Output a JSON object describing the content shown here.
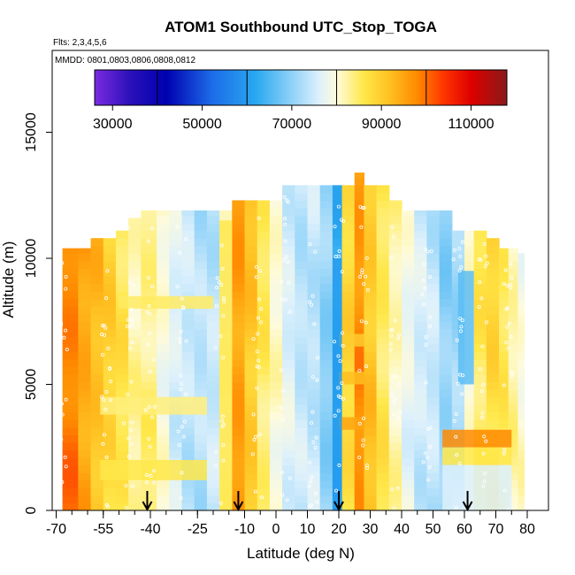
{
  "chart_data": {
    "type": "heatmap",
    "title": "ATOM1 Southbound UTC_Stop_TOGA",
    "subtitle_flights": "Flts: 2,3,4,5,6",
    "subtitle_dates": "MMDD: 0801,0803,0806,0808,0812",
    "xlabel": "Latitude (deg N)",
    "ylabel": "Altitude (m)",
    "xlim": [
      -70,
      82
    ],
    "ylim": [
      0,
      18000
    ],
    "x_ticks": [
      -70,
      -55,
      -40,
      -25,
      -10,
      0,
      10,
      20,
      30,
      40,
      50,
      60,
      70,
      80
    ],
    "x_tick_labels": [
      "-70",
      "-55",
      "-40",
      "-25",
      "-10",
      "0",
      "10",
      "20",
      "30",
      "40",
      "50",
      "60",
      "70",
      "80"
    ],
    "x_minor_step": 5,
    "y_ticks": [
      0,
      5000,
      10000,
      15000
    ],
    "y_tick_labels": [
      "0",
      "5000",
      "10000",
      "15000"
    ],
    "colorbar": {
      "min": 26000,
      "max": 118000,
      "ticks": [
        30000,
        50000,
        70000,
        90000,
        110000
      ],
      "tick_labels": [
        "30000",
        "50000",
        "70000",
        "90000",
        "110000"
      ],
      "dividers": [
        40000,
        60000,
        80000,
        100000
      ],
      "stops": [
        {
          "value": 26000,
          "color": "#7a2be0"
        },
        {
          "value": 34000,
          "color": "#2a10b8"
        },
        {
          "value": 42000,
          "color": "#0000b0"
        },
        {
          "value": 52000,
          "color": "#1c6ae8"
        },
        {
          "value": 62000,
          "color": "#29a8f0"
        },
        {
          "value": 70000,
          "color": "#8fd2f8"
        },
        {
          "value": 76000,
          "color": "#dcf0fc"
        },
        {
          "value": 80000,
          "color": "#fefbdc"
        },
        {
          "value": 86000,
          "color": "#ffe84a"
        },
        {
          "value": 92000,
          "color": "#ffbf20"
        },
        {
          "value": 98000,
          "color": "#ff8a00"
        },
        {
          "value": 104000,
          "color": "#ff3300"
        },
        {
          "value": 110000,
          "color": "#dd0000"
        },
        {
          "value": 118000,
          "color": "#8a1a1a"
        }
      ]
    },
    "columns": [
      {
        "x0": -68,
        "x1": -63,
        "top": 10400,
        "value": 99000
      },
      {
        "x0": -63,
        "x1": -59,
        "top": 10400,
        "value": 95000
      },
      {
        "x0": -59,
        "x1": -55,
        "top": 10800,
        "value": 92000
      },
      {
        "x0": -55,
        "x1": -51,
        "top": 10800,
        "value": 89000
      },
      {
        "x0": -51,
        "x1": -47,
        "top": 11100,
        "value": 86000
      },
      {
        "x0": -47,
        "x1": -43,
        "top": 11600,
        "value": 82000
      },
      {
        "x0": -43,
        "x1": -38,
        "top": 11900,
        "value": 84000
      },
      {
        "x0": -38,
        "x1": -34,
        "top": 11900,
        "value": 80000
      },
      {
        "x0": -34,
        "x1": -30,
        "top": 11900,
        "value": 76000
      },
      {
        "x0": -30,
        "x1": -26,
        "top": 11900,
        "value": 74000
      },
      {
        "x0": -26,
        "x1": -22,
        "top": 11900,
        "value": 73000
      },
      {
        "x0": -22,
        "x1": -18,
        "top": 11900,
        "value": 74000
      },
      {
        "x0": -18,
        "x1": -14,
        "top": 11900,
        "value": 80000
      },
      {
        "x0": -14,
        "x1": -10,
        "top": 12300,
        "value": 96000
      },
      {
        "x0": -10,
        "x1": -6,
        "top": 12300,
        "value": 91000
      },
      {
        "x0": -6,
        "x1": -2,
        "top": 12300,
        "value": 85000
      },
      {
        "x0": -2,
        "x1": 2,
        "top": 12300,
        "value": 80000
      },
      {
        "x0": 2,
        "x1": 6,
        "top": 12900,
        "value": 76000
      },
      {
        "x0": 6,
        "x1": 10,
        "top": 12900,
        "value": 74000
      },
      {
        "x0": 10,
        "x1": 14,
        "top": 12900,
        "value": 74000
      },
      {
        "x0": 14,
        "x1": 18,
        "top": 12900,
        "value": 70000
      },
      {
        "x0": 18,
        "x1": 21,
        "top": 12900,
        "value": 62000
      },
      {
        "x0": 21,
        "x1": 25,
        "top": 12900,
        "value": 88000
      },
      {
        "x0": 25,
        "x1": 28,
        "top": 13400,
        "value": 97000
      },
      {
        "x0": 28,
        "x1": 32,
        "top": 12900,
        "value": 91000
      },
      {
        "x0": 32,
        "x1": 36,
        "top": 12900,
        "value": 86000
      },
      {
        "x0": 36,
        "x1": 40,
        "top": 12300,
        "value": 82000
      },
      {
        "x0": 40,
        "x1": 44,
        "top": 11900,
        "value": 78000
      },
      {
        "x0": 44,
        "x1": 48,
        "top": 11900,
        "value": 75000
      },
      {
        "x0": 48,
        "x1": 52,
        "top": 11900,
        "value": 74000
      },
      {
        "x0": 52,
        "x1": 56,
        "top": 11900,
        "value": 70000
      },
      {
        "x0": 56,
        "x1": 60,
        "top": 11100,
        "value": 72000
      },
      {
        "x0": 60,
        "x1": 63,
        "top": 11100,
        "value": 80000
      },
      {
        "x0": 63,
        "x1": 67,
        "top": 11100,
        "value": 86000
      },
      {
        "x0": 67,
        "x1": 71,
        "top": 10800,
        "value": 88000
      },
      {
        "x0": 71,
        "x1": 74,
        "top": 10400,
        "value": 85000
      },
      {
        "x0": 74,
        "x1": 77,
        "top": 10400,
        "value": 82000
      },
      {
        "x0": 77,
        "x1": 79,
        "top": 10200,
        "value": 80000
      }
    ],
    "bands": [
      {
        "x0": -56,
        "x1": -22,
        "y0": 1200,
        "y1": 2000,
        "value": 86000
      },
      {
        "x0": -56,
        "x1": -22,
        "y0": 3800,
        "y1": 4500,
        "value": 84000
      },
      {
        "x0": -50,
        "x1": -20,
        "y0": 8000,
        "y1": 8500,
        "value": 85000
      },
      {
        "x0": 20,
        "x1": 28,
        "y0": 5000,
        "y1": 5500,
        "value": 92000
      },
      {
        "x0": 20,
        "x1": 28,
        "y0": 3200,
        "y1": 3700,
        "value": 95000
      },
      {
        "x0": 20,
        "x1": 28,
        "y0": 6500,
        "y1": 7000,
        "value": 90000
      },
      {
        "x0": 53,
        "x1": 75,
        "y0": 2500,
        "y1": 3200,
        "value": 98000
      },
      {
        "x0": 53,
        "x1": 75,
        "y0": 1800,
        "y1": 2500,
        "value": 86000
      },
      {
        "x0": 53,
        "x1": 75,
        "y0": 0,
        "y1": 1800,
        "value": 76000
      },
      {
        "x0": 58,
        "x1": 63,
        "y0": 5000,
        "y1": 9500,
        "value": 66000
      },
      {
        "x0": 18,
        "x1": 21,
        "y0": 0,
        "y1": 10000,
        "value": 60000
      },
      {
        "x0": -18,
        "x1": -14,
        "y0": 0,
        "y1": 11500,
        "value": 86000
      }
    ],
    "arrows_x": [
      -41,
      -12,
      20,
      61
    ]
  }
}
